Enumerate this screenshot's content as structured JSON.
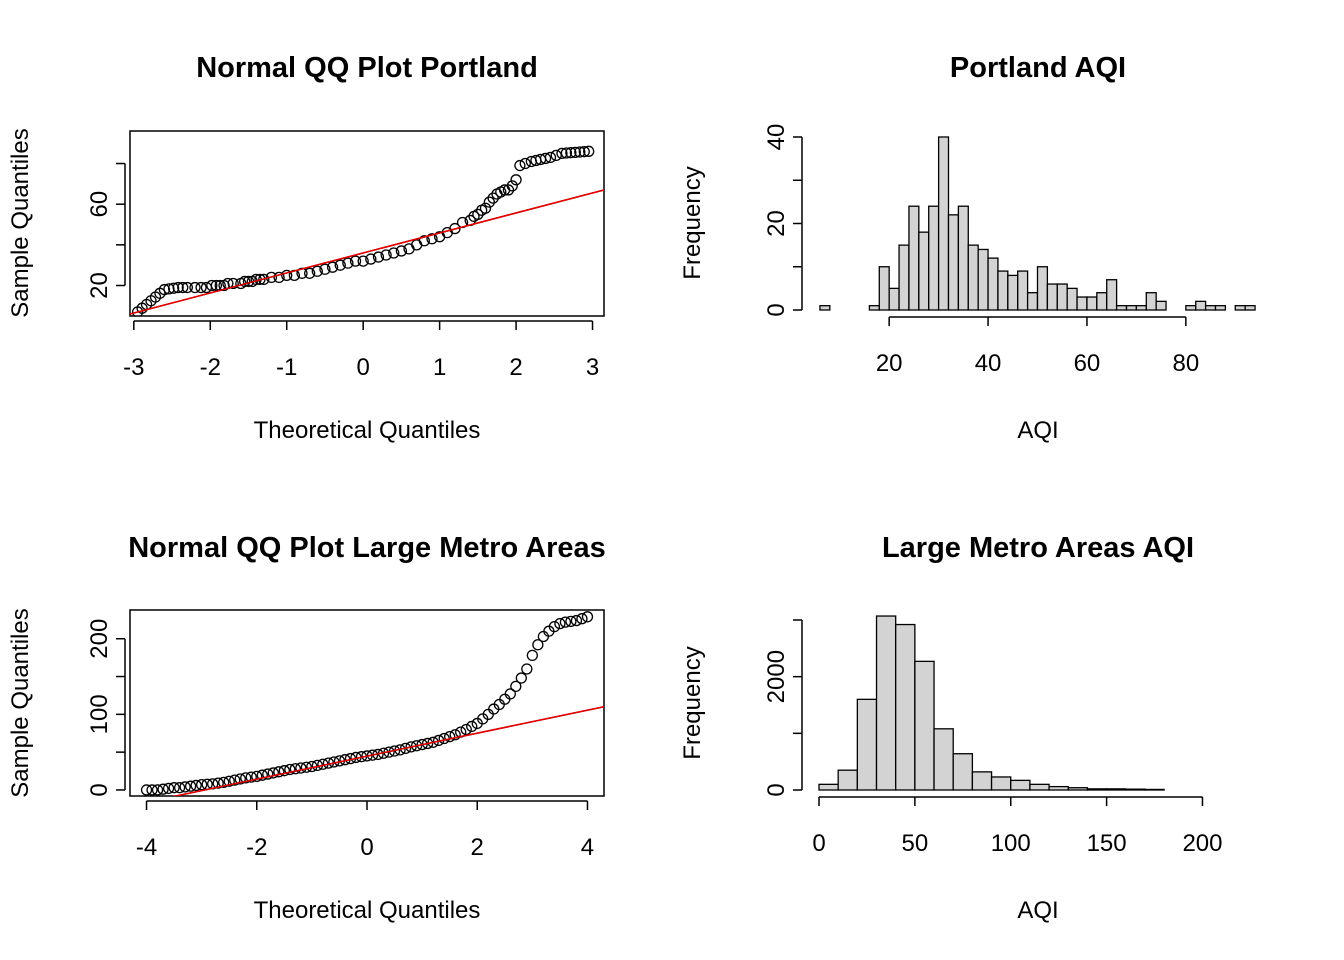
{
  "colors": {
    "background": "#ffffff",
    "axis": "#000000",
    "reference_line": "#dd0000",
    "bar_fill": "#d3d3d3",
    "point_stroke": "#000000"
  },
  "chart_data": [
    {
      "type": "scatter",
      "subtype": "normal-qq",
      "title": "Normal QQ Plot Portland",
      "xlabel": "Theoretical Quantiles",
      "ylabel": "Sample Quantiles",
      "xlim": [
        -3.05,
        3.15
      ],
      "ylim": [
        5,
        96
      ],
      "xticks": [
        -3,
        -2,
        -1,
        0,
        1,
        2,
        3
      ],
      "yticks": [
        20,
        40,
        60,
        80
      ],
      "yticklabels": [
        "20",
        "",
        "60",
        ""
      ],
      "reference_line": {
        "x": [
          -3.05,
          3.15
        ],
        "y": [
          6,
          67
        ]
      },
      "points": [
        [
          -2.95,
          7
        ],
        [
          -2.6,
          18
        ],
        [
          -2.42,
          19
        ],
        [
          -2.3,
          19
        ],
        [
          -2.2,
          19
        ],
        [
          -2.12,
          19
        ],
        [
          -2.05,
          19
        ],
        [
          -1.98,
          20
        ],
        [
          -1.92,
          20
        ],
        [
          -1.87,
          20
        ],
        [
          -1.82,
          20
        ],
        [
          -1.77,
          21
        ],
        [
          -1.7,
          21
        ],
        [
          -1.6,
          21
        ],
        [
          -1.55,
          22
        ],
        [
          -1.5,
          22
        ],
        [
          -1.45,
          22
        ],
        [
          -1.4,
          23
        ],
        [
          -1.35,
          23
        ],
        [
          -1.3,
          23
        ],
        [
          -1.2,
          24
        ],
        [
          -1.1,
          24
        ],
        [
          -1.0,
          25
        ],
        [
          -0.9,
          25
        ],
        [
          -0.8,
          26
        ],
        [
          -0.7,
          26
        ],
        [
          -0.6,
          27
        ],
        [
          -0.5,
          28
        ],
        [
          -0.4,
          29
        ],
        [
          -0.3,
          30
        ],
        [
          -0.2,
          31
        ],
        [
          -0.1,
          32
        ],
        [
          0.0,
          32
        ],
        [
          0.1,
          33
        ],
        [
          0.2,
          34
        ],
        [
          0.3,
          35
        ],
        [
          0.4,
          36
        ],
        [
          0.5,
          37
        ],
        [
          0.6,
          38
        ],
        [
          0.7,
          40
        ],
        [
          0.8,
          42
        ],
        [
          0.9,
          43
        ],
        [
          1.0,
          44
        ],
        [
          1.1,
          46
        ],
        [
          1.2,
          48
        ],
        [
          1.3,
          51
        ],
        [
          1.4,
          52
        ],
        [
          1.45,
          54
        ],
        [
          1.5,
          55
        ],
        [
          1.55,
          57
        ],
        [
          1.6,
          58
        ],
        [
          1.65,
          61
        ],
        [
          1.7,
          63
        ],
        [
          1.75,
          65
        ],
        [
          1.8,
          66
        ],
        [
          1.85,
          67
        ],
        [
          1.9,
          67
        ],
        [
          1.95,
          69
        ],
        [
          2.0,
          72
        ],
        [
          2.05,
          79
        ],
        [
          2.12,
          80
        ],
        [
          2.2,
          81
        ],
        [
          2.32,
          82
        ],
        [
          2.45,
          83
        ],
        [
          2.6,
          85
        ],
        [
          2.95,
          86
        ]
      ]
    },
    {
      "type": "bar",
      "subtype": "histogram",
      "title": "Portland AQI",
      "xlabel": "AQI",
      "ylabel": "Frequency",
      "xlim": [
        5,
        95
      ],
      "ylim": [
        0,
        40
      ],
      "xticks": [
        20,
        40,
        60,
        80
      ],
      "yticks": [
        0,
        10,
        20,
        30,
        40
      ],
      "yticklabels": [
        "0",
        "",
        "20",
        "",
        "40"
      ],
      "bin_width": 2,
      "bins_start": [
        6,
        16,
        18,
        20,
        22,
        24,
        26,
        28,
        30,
        32,
        34,
        36,
        38,
        40,
        42,
        44,
        46,
        48,
        50,
        52,
        54,
        56,
        58,
        60,
        62,
        64,
        66,
        68,
        70,
        72,
        74,
        80,
        82,
        84,
        86,
        90,
        92
      ],
      "counts": [
        1,
        1,
        10,
        5,
        15,
        24,
        18,
        24,
        40,
        22,
        24,
        15,
        14,
        12,
        9,
        8,
        9,
        4,
        10,
        6,
        6,
        5,
        3,
        3,
        4,
        7,
        1,
        1,
        1,
        4,
        2,
        1,
        2,
        1,
        1,
        1,
        1
      ]
    },
    {
      "type": "scatter",
      "subtype": "normal-qq",
      "title": "Normal QQ Plot Large Metro Areas",
      "xlabel": "Theoretical Quantiles",
      "ylabel": "Sample Quantiles",
      "xlim": [
        -4.3,
        4.3
      ],
      "ylim": [
        -8,
        238
      ],
      "xticks": [
        -4,
        -2,
        0,
        2,
        4
      ],
      "yticks": [
        0,
        50,
        100,
        150,
        200
      ],
      "yticklabels": [
        "0",
        "",
        "100",
        "",
        "200"
      ],
      "reference_line": {
        "x": [
          -3.6,
          4.3
        ],
        "y": [
          -10,
          110
        ]
      },
      "points": [
        [
          -4.0,
          0
        ],
        [
          -3.8,
          0
        ],
        [
          -3.7,
          1
        ],
        [
          -3.6,
          2
        ],
        [
          -3.5,
          3
        ],
        [
          -3.4,
          3
        ],
        [
          -3.3,
          4
        ],
        [
          -3.2,
          5
        ],
        [
          -3.0,
          7
        ],
        [
          -2.8,
          8
        ],
        [
          -2.6,
          10
        ],
        [
          -2.4,
          13
        ],
        [
          -2.2,
          16
        ],
        [
          -2.0,
          18
        ],
        [
          -1.8,
          21
        ],
        [
          -1.6,
          24
        ],
        [
          -1.4,
          27
        ],
        [
          -1.2,
          29
        ],
        [
          -1.0,
          31
        ],
        [
          -0.8,
          34
        ],
        [
          -0.6,
          37
        ],
        [
          -0.4,
          40
        ],
        [
          -0.2,
          43
        ],
        [
          0.0,
          45
        ],
        [
          0.2,
          47
        ],
        [
          0.4,
          50
        ],
        [
          0.6,
          53
        ],
        [
          0.8,
          57
        ],
        [
          1.0,
          60
        ],
        [
          1.2,
          63
        ],
        [
          1.4,
          68
        ],
        [
          1.6,
          73
        ],
        [
          1.8,
          80
        ],
        [
          2.0,
          88
        ],
        [
          2.1,
          94
        ],
        [
          2.2,
          100
        ],
        [
          2.3,
          107
        ],
        [
          2.4,
          113
        ],
        [
          2.5,
          120
        ],
        [
          2.6,
          127
        ],
        [
          2.7,
          137
        ],
        [
          2.8,
          148
        ],
        [
          2.9,
          160
        ],
        [
          3.0,
          178
        ],
        [
          3.1,
          192
        ],
        [
          3.2,
          203
        ],
        [
          3.3,
          210
        ],
        [
          3.4,
          216
        ],
        [
          3.5,
          220
        ],
        [
          3.6,
          222
        ],
        [
          3.7,
          223
        ],
        [
          3.8,
          224
        ],
        [
          4.0,
          229
        ]
      ]
    },
    {
      "type": "bar",
      "subtype": "histogram",
      "title": "Large Metro Areas AQI",
      "xlabel": "AQI",
      "ylabel": "Frequency",
      "xlim": [
        0,
        230
      ],
      "ylim": [
        0,
        3000
      ],
      "xticks": [
        0,
        50,
        100,
        150,
        200
      ],
      "yticks": [
        0,
        1000,
        2000,
        3000
      ],
      "yticklabels": [
        "0",
        "",
        "2000",
        ""
      ],
      "bin_width": 10,
      "bins_start": [
        0,
        10,
        20,
        30,
        40,
        50,
        60,
        70,
        80,
        90,
        100,
        110,
        120,
        130,
        140,
        150,
        160,
        170
      ],
      "counts": [
        100,
        350,
        1600,
        3070,
        2920,
        2270,
        1080,
        640,
        320,
        230,
        170,
        100,
        60,
        40,
        20,
        20,
        15,
        10
      ]
    }
  ]
}
